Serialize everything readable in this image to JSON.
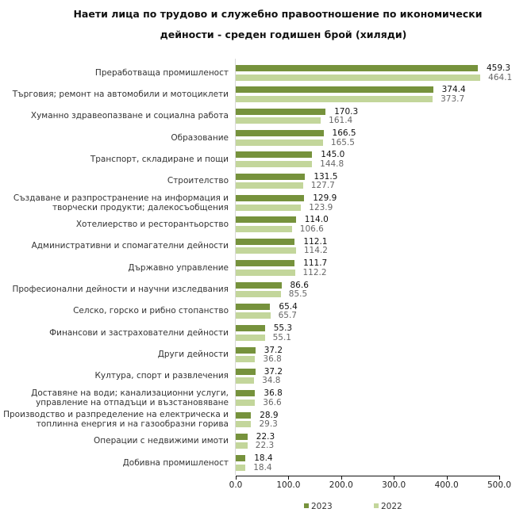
{
  "chart_data": {
    "type": "bar",
    "orientation": "horizontal",
    "title": "Наети лица по трудово и служебно правоотношение по икономически дейности - среден годишен брой (хиляди)",
    "title_lines": [
      "Наети лица по трудово и служебно правоотношение по икономически",
      "дейности - среден годишен брой (хиляди)"
    ],
    "xlabel": "",
    "ylabel": "",
    "xlim": [
      0,
      500
    ],
    "x_ticks": [
      "0.0",
      "100.0",
      "200.0",
      "300.0",
      "400.0",
      "500.0"
    ],
    "grid": false,
    "legend_position": "bottom",
    "categories": [
      [
        "Преработваща промишленост"
      ],
      [
        "Търговия; ремонт на автомобили и мотоциклети"
      ],
      [
        "Хуманно здравеопазване и социална работа"
      ],
      [
        "Образование"
      ],
      [
        "Транспорт, складиране и пощи"
      ],
      [
        "Строителство"
      ],
      [
        "Създаване и разпространение на информация и",
        "творчески продукти; далекосъобщения"
      ],
      [
        "Хотелиерство и ресторантьорство"
      ],
      [
        "Административни и спомагателни дейности"
      ],
      [
        "Държавно управление"
      ],
      [
        "Професионални дейности и научни изследвания"
      ],
      [
        "Селско, горско и рибно стопанство"
      ],
      [
        "Финансови и застрахователни дейности"
      ],
      [
        "Други дейности"
      ],
      [
        "Култура, спорт и развлечения"
      ],
      [
        "Доставяне на води; канализационни услуги,",
        "управление на отпадъци и възстановяване"
      ],
      [
        "Производство и разпределение на електрическа и",
        "топлинна енергия и на газообразни горива"
      ],
      [
        "Операции с недвижими имоти"
      ],
      [
        "Добивна промишленост"
      ]
    ],
    "series": [
      {
        "name": "2023",
        "color": "#76923c",
        "values": [
          459.3,
          374.4,
          170.3,
          166.5,
          145.0,
          131.5,
          129.9,
          114.0,
          112.1,
          111.7,
          86.6,
          65.4,
          55.3,
          37.2,
          37.2,
          36.8,
          28.9,
          22.3,
          18.4
        ],
        "labels": [
          "459.3",
          "374.4",
          "170.3",
          "166.5",
          "145.0",
          "131.5",
          "129.9",
          "114.0",
          "112.1",
          "111.7",
          "86.6",
          "65.4",
          "55.3",
          "37.2",
          "37.2",
          "36.8",
          "28.9",
          "22.3",
          "18.4"
        ]
      },
      {
        "name": "2022",
        "color": "#c3d69b",
        "values": [
          464.1,
          373.7,
          161.4,
          165.5,
          144.8,
          127.7,
          123.9,
          106.6,
          114.2,
          112.2,
          85.5,
          65.7,
          55.1,
          36.8,
          34.8,
          36.6,
          29.3,
          22.3,
          18.4
        ],
        "labels": [
          "464.1",
          "373.7",
          "161.4",
          "165.5",
          "144.8",
          "127.7",
          "123.9",
          "106.6",
          "114.2",
          "112.2",
          "85.5",
          "65.7",
          "55.1",
          "36.8",
          "34.8",
          "36.6",
          "29.3",
          "22.3",
          "18.4"
        ]
      }
    ]
  }
}
